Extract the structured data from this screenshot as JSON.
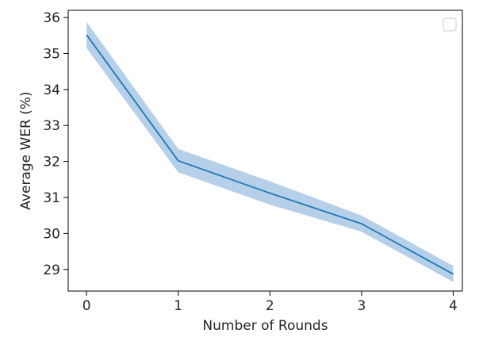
{
  "chart_data": {
    "type": "line",
    "title": "",
    "xlabel": "Number of Rounds",
    "ylabel": "Average WER (%)",
    "x": [
      0,
      1,
      2,
      3,
      4
    ],
    "xticks": [
      0,
      1,
      2,
      3,
      4
    ],
    "yticks": [
      29,
      30,
      31,
      32,
      33,
      34,
      35,
      36
    ],
    "xlim": [
      -0.2,
      4.1
    ],
    "ylim": [
      28.4,
      36.2
    ],
    "grid": false,
    "legend": {
      "placement": "top-right",
      "entries": []
    },
    "series": [
      {
        "values": [
          35.52,
          32.02,
          31.12,
          30.27,
          28.87
        ],
        "lower": [
          35.15,
          31.7,
          30.8,
          30.05,
          28.65
        ],
        "upper": [
          35.88,
          32.35,
          31.45,
          30.5,
          29.1
        ],
        "color": "#1f77b4",
        "band_color": "#a9c8e6"
      }
    ]
  }
}
